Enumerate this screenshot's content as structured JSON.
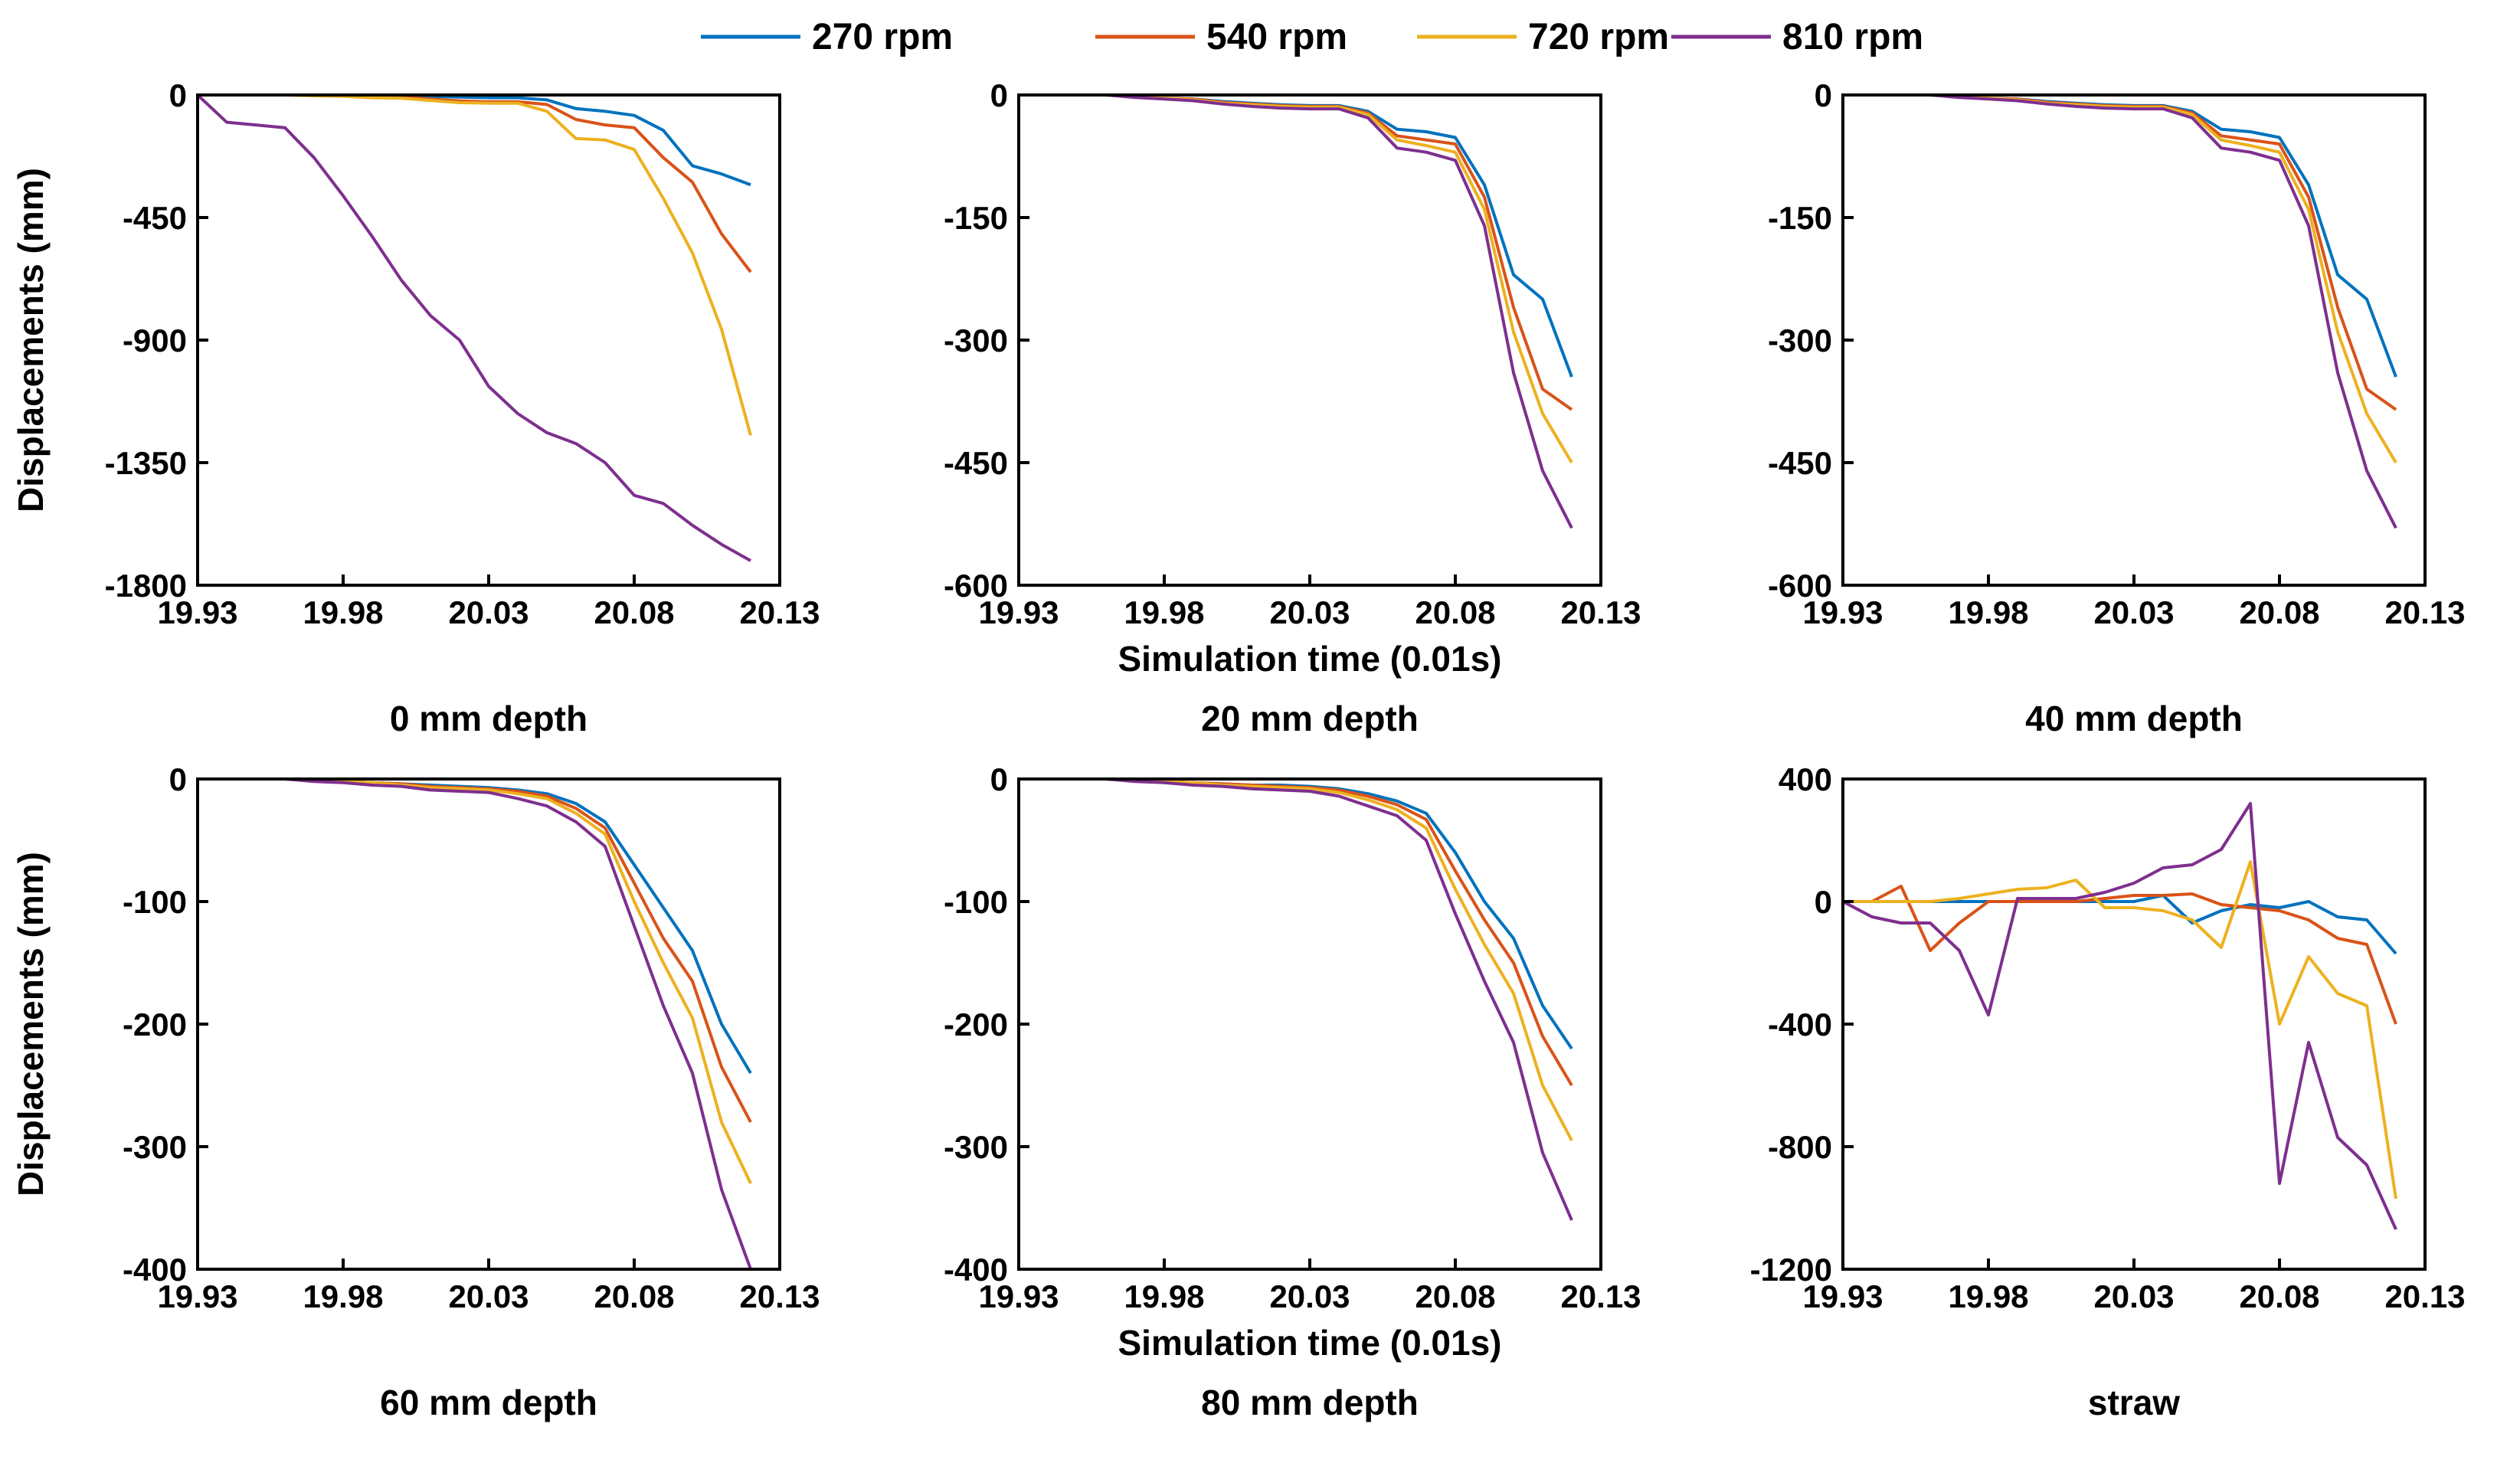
{
  "legend": [
    {
      "label": "270 rpm",
      "color": "#0072BD"
    },
    {
      "label": "540 rpm",
      "color": "#D95319"
    },
    {
      "label": "720 rpm",
      "color": "#EDB120"
    },
    {
      "label": "810 rpm",
      "color": "#7E2F8E"
    }
  ],
  "chart_data": [
    {
      "type": "line",
      "title": "0 mm depth",
      "xlabel": "",
      "ylabel": "Displacements (mm)",
      "xlim": [
        19.93,
        20.13
      ],
      "ylim": [
        -1800,
        0
      ],
      "xticks": [
        "19.93",
        "19.98",
        "20.03",
        "20.08",
        "20.13"
      ],
      "yticks": [
        "0",
        "-450",
        "-900",
        "-1350",
        "-1800"
      ],
      "x": [
        19.93,
        19.94,
        19.95,
        19.96,
        19.97,
        19.98,
        19.99,
        20.0,
        20.01,
        20.02,
        20.03,
        20.04,
        20.05,
        20.06,
        20.07,
        20.08,
        20.09,
        20.1,
        20.11,
        20.12
      ],
      "series": [
        {
          "name": "270 rpm",
          "values": [
            0,
            0,
            0,
            0,
            0,
            0,
            0,
            -3,
            -5,
            -8,
            -10,
            -10,
            -18,
            -50,
            -60,
            -75,
            -130,
            -260,
            -290,
            -330
          ]
        },
        {
          "name": "540 rpm",
          "values": [
            0,
            0,
            0,
            0,
            0,
            0,
            -5,
            -8,
            -15,
            -22,
            -25,
            -25,
            -35,
            -90,
            -110,
            -120,
            -230,
            -320,
            -510,
            -650
          ]
        },
        {
          "name": "720 rpm",
          "values": [
            0,
            0,
            0,
            0,
            -3,
            -5,
            -10,
            -12,
            -20,
            -28,
            -30,
            -30,
            -60,
            -160,
            -165,
            -200,
            -380,
            -580,
            -860,
            -1250
          ]
        },
        {
          "name": "810 rpm",
          "values": [
            0,
            -100,
            -110,
            -120,
            -230,
            -370,
            -520,
            -680,
            -810,
            -900,
            -1070,
            -1170,
            -1240,
            -1280,
            -1350,
            -1470,
            -1500,
            -1580,
            -1650,
            -1710
          ]
        }
      ]
    },
    {
      "type": "line",
      "title": "20 mm depth",
      "xlabel": "Simulation time (0.01s)",
      "ylabel": "",
      "xlim": [
        19.93,
        20.13
      ],
      "ylim": [
        -600,
        0
      ],
      "xticks": [
        "19.93",
        "19.98",
        "20.03",
        "20.08",
        "20.13"
      ],
      "yticks": [
        "0",
        "-150",
        "-300",
        "-450",
        "-600"
      ],
      "x": [
        19.93,
        19.94,
        19.95,
        19.96,
        19.97,
        19.98,
        19.99,
        20.0,
        20.01,
        20.02,
        20.03,
        20.04,
        20.05,
        20.06,
        20.07,
        20.08,
        20.09,
        20.1,
        20.11,
        20.12
      ],
      "series": [
        {
          "name": "270 rpm",
          "values": [
            0,
            0,
            0,
            0,
            -2,
            -4,
            -5,
            -8,
            -10,
            -12,
            -13,
            -13,
            -20,
            -42,
            -45,
            -52,
            -110,
            -220,
            -250,
            -345
          ]
        },
        {
          "name": "540 rpm",
          "values": [
            0,
            0,
            0,
            0,
            -2,
            -4,
            -5,
            -9,
            -11,
            -13,
            -14,
            -14,
            -22,
            -50,
            -55,
            -60,
            -125,
            -260,
            -360,
            -385
          ]
        },
        {
          "name": "720 rpm",
          "values": [
            0,
            0,
            0,
            0,
            -2,
            -4,
            -6,
            -10,
            -12,
            -14,
            -15,
            -15,
            -24,
            -55,
            -62,
            -70,
            -140,
            -290,
            -390,
            -450
          ]
        },
        {
          "name": "810 rpm",
          "values": [
            0,
            0,
            0,
            0,
            -3,
            -5,
            -7,
            -11,
            -14,
            -16,
            -17,
            -17,
            -28,
            -65,
            -70,
            -80,
            -160,
            -340,
            -460,
            -530
          ]
        }
      ]
    },
    {
      "type": "line",
      "title": "40 mm depth",
      "xlabel": "",
      "ylabel": "",
      "xlim": [
        19.93,
        20.13
      ],
      "ylim": [
        -600,
        0
      ],
      "xticks": [
        "19.93",
        "19.98",
        "20.03",
        "20.08",
        "20.13"
      ],
      "yticks": [
        "0",
        "-150",
        "-300",
        "-450",
        "-600"
      ],
      "x": [
        19.93,
        19.94,
        19.95,
        19.96,
        19.97,
        19.98,
        19.99,
        20.0,
        20.01,
        20.02,
        20.03,
        20.04,
        20.05,
        20.06,
        20.07,
        20.08,
        20.09,
        20.1,
        20.11,
        20.12
      ],
      "series": [
        {
          "name": "270 rpm",
          "values": [
            0,
            0,
            0,
            0,
            -2,
            -4,
            -5,
            -8,
            -10,
            -12,
            -13,
            -13,
            -20,
            -42,
            -45,
            -52,
            -110,
            -220,
            -250,
            -345
          ]
        },
        {
          "name": "540 rpm",
          "values": [
            0,
            0,
            0,
            0,
            -2,
            -4,
            -5,
            -9,
            -11,
            -13,
            -14,
            -14,
            -22,
            -50,
            -55,
            -60,
            -125,
            -260,
            -360,
            -385
          ]
        },
        {
          "name": "720 rpm",
          "values": [
            0,
            0,
            0,
            0,
            -2,
            -4,
            -6,
            -10,
            -12,
            -14,
            -15,
            -15,
            -24,
            -55,
            -62,
            -70,
            -140,
            -290,
            -390,
            -450
          ]
        },
        {
          "name": "810 rpm",
          "values": [
            0,
            0,
            0,
            0,
            -3,
            -5,
            -7,
            -11,
            -14,
            -16,
            -17,
            -17,
            -28,
            -65,
            -70,
            -80,
            -160,
            -340,
            -460,
            -530
          ]
        }
      ]
    },
    {
      "type": "line",
      "title": "60 mm depth",
      "xlabel": "",
      "ylabel": "Displacements (mm)",
      "xlim": [
        19.93,
        20.13
      ],
      "ylim": [
        -400,
        0
      ],
      "xticks": [
        "19.93",
        "19.98",
        "20.03",
        "20.08",
        "20.13"
      ],
      "yticks": [
        "0",
        "-100",
        "-200",
        "-300",
        "-400"
      ],
      "x": [
        19.93,
        19.94,
        19.95,
        19.96,
        19.97,
        19.98,
        19.99,
        20.0,
        20.01,
        20.02,
        20.03,
        20.04,
        20.05,
        20.06,
        20.07,
        20.08,
        20.09,
        20.1,
        20.11,
        20.12
      ],
      "series": [
        {
          "name": "270 rpm",
          "values": [
            0,
            0,
            0,
            0,
            -1,
            -2,
            -3,
            -4,
            -5,
            -6,
            -7,
            -9,
            -12,
            -20,
            -35,
            -70,
            -105,
            -140,
            -200,
            -240
          ]
        },
        {
          "name": "540 rpm",
          "values": [
            0,
            0,
            0,
            0,
            -1,
            -2,
            -3,
            -4,
            -6,
            -7,
            -8,
            -10,
            -14,
            -24,
            -40,
            -85,
            -130,
            -165,
            -235,
            -280
          ]
        },
        {
          "name": "720 rpm",
          "values": [
            0,
            0,
            0,
            0,
            -1,
            -2,
            -3,
            -5,
            -7,
            -8,
            -9,
            -12,
            -16,
            -28,
            -45,
            -100,
            -150,
            -195,
            -280,
            -330
          ]
        },
        {
          "name": "810 rpm",
          "values": [
            0,
            0,
            0,
            0,
            -2,
            -3,
            -5,
            -6,
            -9,
            -10,
            -11,
            -16,
            -22,
            -35,
            -55,
            -120,
            -185,
            -240,
            -335,
            -400
          ]
        }
      ]
    },
    {
      "type": "line",
      "title": "80 mm depth",
      "xlabel": "Simulation time (0.01s)",
      "ylabel": "",
      "xlim": [
        19.93,
        20.13
      ],
      "ylim": [
        -400,
        0
      ],
      "xticks": [
        "19.93",
        "19.98",
        "20.03",
        "20.08",
        "20.13"
      ],
      "yticks": [
        "0",
        "-100",
        "-200",
        "-300",
        "-400"
      ],
      "x": [
        19.93,
        19.94,
        19.95,
        19.96,
        19.97,
        19.98,
        19.99,
        20.0,
        20.01,
        20.02,
        20.03,
        20.04,
        20.05,
        20.06,
        20.07,
        20.08,
        20.09,
        20.1,
        20.11,
        20.12
      ],
      "series": [
        {
          "name": "270 rpm",
          "values": [
            0,
            0,
            0,
            0,
            -1,
            -2,
            -3,
            -4,
            -5,
            -5,
            -6,
            -8,
            -12,
            -18,
            -28,
            -60,
            -100,
            -130,
            -185,
            -220
          ]
        },
        {
          "name": "540 rpm",
          "values": [
            0,
            0,
            0,
            0,
            -1,
            -2,
            -3,
            -4,
            -5,
            -6,
            -7,
            -9,
            -14,
            -21,
            -33,
            -75,
            -115,
            -150,
            -210,
            -250
          ]
        },
        {
          "name": "720 rpm",
          "values": [
            0,
            0,
            0,
            0,
            -1,
            -2,
            -3,
            -5,
            -6,
            -7,
            -8,
            -11,
            -17,
            -25,
            -40,
            -90,
            -135,
            -175,
            -250,
            -295
          ]
        },
        {
          "name": "810 rpm",
          "values": [
            0,
            0,
            0,
            0,
            -2,
            -3,
            -5,
            -6,
            -8,
            -9,
            -10,
            -14,
            -22,
            -30,
            -50,
            -110,
            -165,
            -215,
            -305,
            -360
          ]
        }
      ]
    },
    {
      "type": "line",
      "title": "straw",
      "xlabel": "",
      "ylabel": "",
      "xlim": [
        19.93,
        20.13
      ],
      "ylim": [
        -1200,
        400
      ],
      "xticks": [
        "19.93",
        "19.98",
        "20.03",
        "20.08",
        "20.13"
      ],
      "yticks": [
        "400",
        "0",
        "-400",
        "-800",
        "-1200"
      ],
      "x": [
        19.93,
        19.94,
        19.95,
        19.96,
        19.97,
        19.98,
        19.99,
        20.0,
        20.01,
        20.02,
        20.03,
        20.04,
        20.05,
        20.06,
        20.07,
        20.08,
        20.09,
        20.1,
        20.11,
        20.12
      ],
      "series": [
        {
          "name": "270 rpm",
          "values": [
            0,
            0,
            0,
            0,
            0,
            0,
            0,
            0,
            0,
            0,
            0,
            20,
            -70,
            -30,
            -10,
            -20,
            0,
            -50,
            -60,
            -170
          ]
        },
        {
          "name": "540 rpm",
          "values": [
            0,
            0,
            50,
            -160,
            -70,
            0,
            0,
            0,
            0,
            10,
            20,
            20,
            25,
            -10,
            -20,
            -30,
            -60,
            -120,
            -140,
            -400
          ]
        },
        {
          "name": "720 rpm",
          "values": [
            0,
            0,
            0,
            0,
            10,
            25,
            40,
            45,
            70,
            -20,
            -20,
            -30,
            -60,
            -150,
            130,
            -400,
            -180,
            -300,
            -340,
            -970
          ]
        },
        {
          "name": "810 rpm",
          "values": [
            0,
            -50,
            -70,
            -70,
            -160,
            -370,
            10,
            10,
            10,
            30,
            60,
            110,
            120,
            170,
            320,
            -920,
            -460,
            -770,
            -860,
            -1070
          ]
        }
      ]
    }
  ]
}
